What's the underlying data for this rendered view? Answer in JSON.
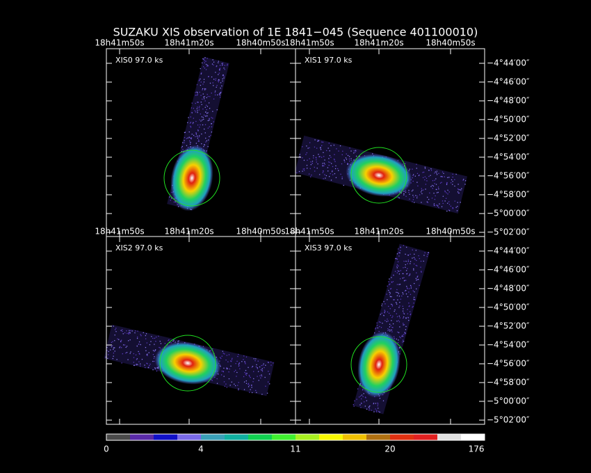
{
  "title": "SUZAKU XIS observation of 1E 1841−045  (Sequence 401100010)",
  "panels": [
    {
      "label": "XIS0 97.0 ks"
    },
    {
      "label": "XIS1 97.0 ks"
    },
    {
      "label": "XIS2 97.0 ks"
    },
    {
      "label": "XIS3 97.0 ks"
    }
  ],
  "ra_labels": [
    "18h41m50s",
    "18h41m20s",
    "18h40m50s"
  ],
  "dec_labels": [
    "−4°44′00″",
    "−4°46′00″",
    "−4°48′00″",
    "−4°50′00″",
    "−4°52′00″",
    "−4°54′00″",
    "−4°56′00″",
    "−4°58′00″",
    "−5°00′00″",
    "−5°02′00″"
  ],
  "colorbar": {
    "colors": [
      "#4a4a4a",
      "#5a2aa8",
      "#1010c8",
      "#7a6ae8",
      "#3aa0b8",
      "#10b0a0",
      "#10d050",
      "#40f030",
      "#a8f020",
      "#f8f800",
      "#f0c000",
      "#b07010",
      "#e03010",
      "#e02020",
      "#e0e0e0",
      "#ffffff"
    ],
    "ticks": [
      0,
      4,
      11,
      20,
      176
    ]
  }
}
